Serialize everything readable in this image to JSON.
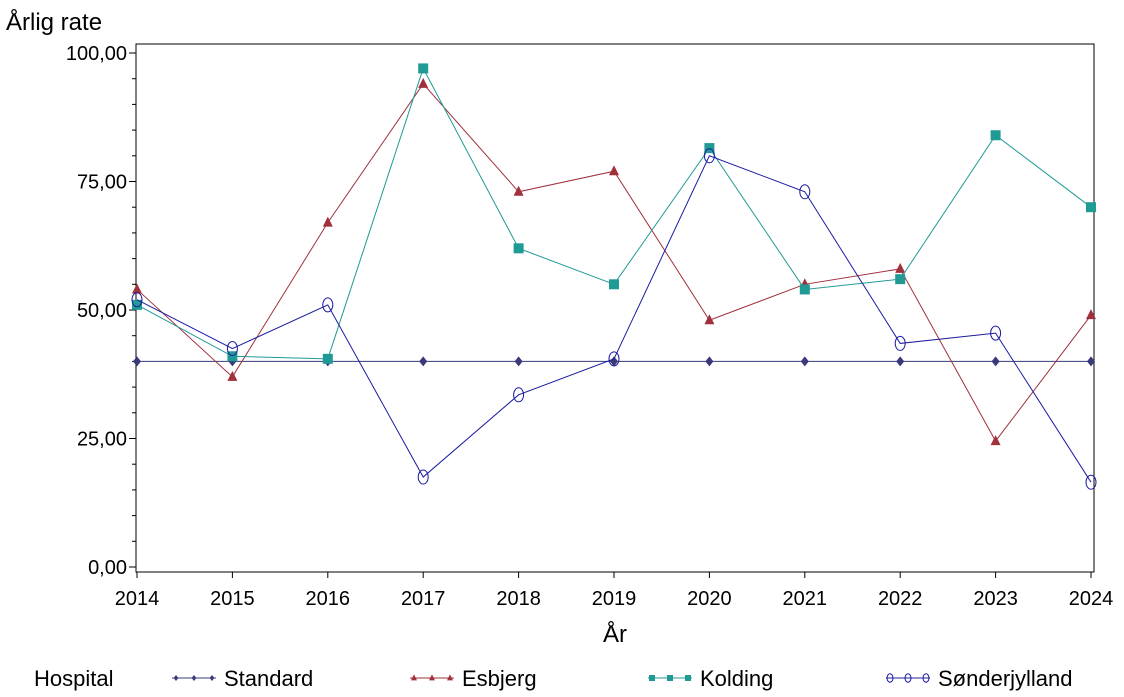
{
  "chart_data": {
    "type": "line",
    "ylabel": "Årlig rate",
    "xlabel": "År",
    "ylim": [
      0,
      100
    ],
    "yticks": [
      0,
      25,
      50,
      75,
      100
    ],
    "ytick_labels": [
      "0,00",
      "25,00",
      "50,00",
      "75,00",
      "100,00"
    ],
    "x": [
      2014,
      2015,
      2016,
      2017,
      2018,
      2019,
      2020,
      2021,
      2022,
      2023,
      2024
    ],
    "legend_title": "Hospital",
    "legend_position": "bottom",
    "grid": false,
    "series": [
      {
        "name": "Standard",
        "color": "#3a3a7a",
        "marker": "diamond",
        "values": [
          40,
          40,
          40,
          40,
          40,
          40,
          40,
          40,
          40,
          40,
          40
        ]
      },
      {
        "name": "Esbjerg",
        "color": "#a0303c",
        "marker": "triangle",
        "values": [
          54,
          37,
          67,
          94,
          73,
          77,
          48,
          55,
          58,
          24.5,
          49
        ]
      },
      {
        "name": "Kolding",
        "color": "#1f9a94",
        "marker": "square",
        "values": [
          51,
          41,
          40.5,
          97,
          62,
          55,
          81.5,
          54,
          56,
          84,
          70
        ]
      },
      {
        "name": "Sønderjylland",
        "color": "#1c1ca0",
        "marker": "circle",
        "values": [
          52,
          42.5,
          51,
          17.5,
          33.5,
          40.5,
          80,
          73,
          43.5,
          45.5,
          16.5
        ]
      }
    ]
  }
}
